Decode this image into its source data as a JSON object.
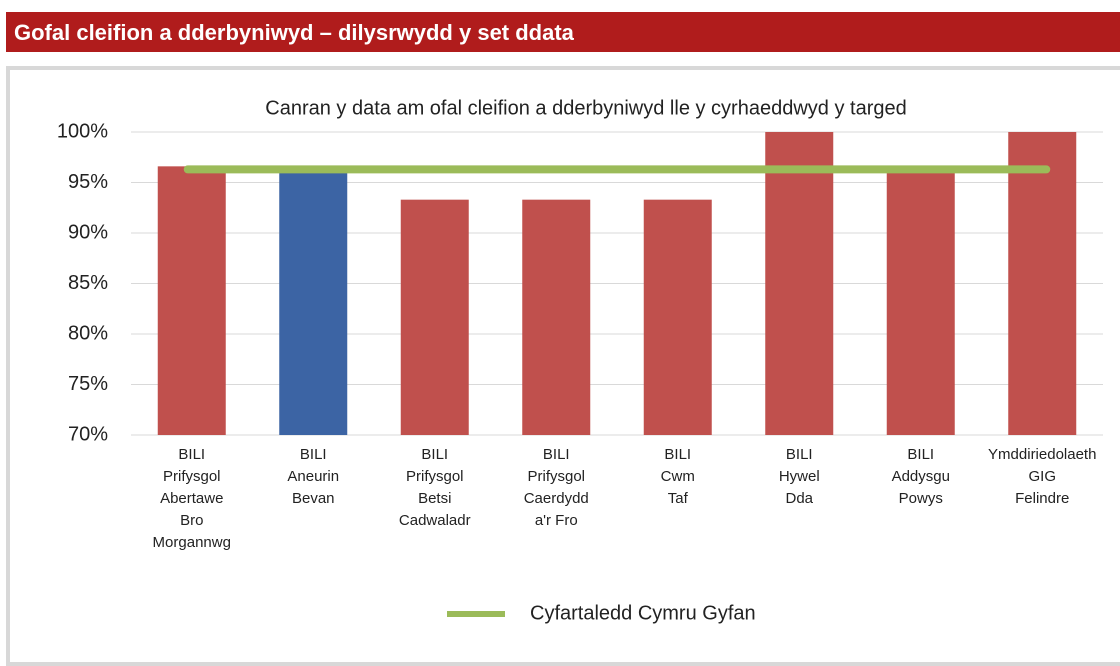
{
  "header": {
    "title": "Gofal cleifion a dderbyniwyd – dilysrwydd y set ddata"
  },
  "chart_data": {
    "type": "bar",
    "title": "Canran y data am ofal cleifion a dderbyniwyd lle y cyrhaeddwyd y targed",
    "categories": [
      [
        "BILI",
        "Prifysgol",
        "Abertawe",
        "Bro",
        "Morgannwg"
      ],
      [
        "BILI",
        "Aneurin",
        "Bevan"
      ],
      [
        "BILI",
        "Prifysgol",
        "Betsi",
        "Cadwaladr"
      ],
      [
        "BILI",
        "Prifysgol",
        "Caerdydd",
        "a'r Fro"
      ],
      [
        "BILI",
        "Cwm",
        "Taf"
      ],
      [
        "BILI",
        "Hywel",
        "Dda"
      ],
      [
        "BILI",
        "Addysgu",
        "Powys"
      ],
      [
        "Ymddiriedolaeth",
        "GIG",
        "Felindre"
      ]
    ],
    "values": [
      96.6,
      96,
      93.3,
      93.3,
      93.3,
      100,
      96,
      100
    ],
    "colors": [
      "#c0504d",
      "#3c64a4",
      "#c0504d",
      "#c0504d",
      "#c0504d",
      "#c0504d",
      "#c0504d",
      "#c0504d"
    ],
    "average": {
      "name": "Cyfartaledd Cymru Gyfan",
      "value": 96.3,
      "color": "#9bbb59"
    },
    "ylim": [
      70,
      100
    ],
    "yticks": [
      {
        "value": 70,
        "label": "70%"
      },
      {
        "value": 75,
        "label": "75%"
      },
      {
        "value": 80,
        "label": "80%"
      },
      {
        "value": 85,
        "label": "85%"
      },
      {
        "value": 90,
        "label": "90%"
      },
      {
        "value": 95,
        "label": "95%"
      },
      {
        "value": 100,
        "label": "100%"
      }
    ],
    "grid": true
  }
}
